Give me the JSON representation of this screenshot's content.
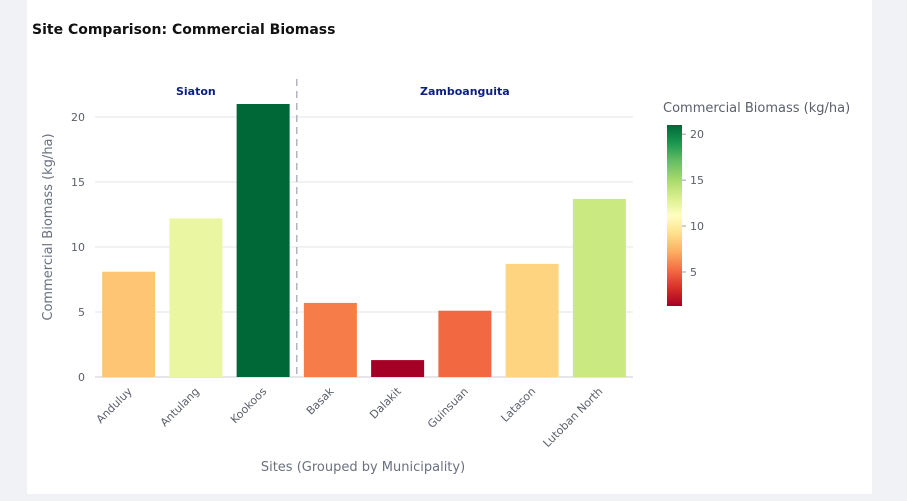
{
  "page": {
    "title": "Site Comparison: Commercial Biomass"
  },
  "chart_data": {
    "type": "bar",
    "title": "Site Comparison: Commercial Biomass",
    "xlabel": "Sites (Grouped by Municipality)",
    "ylabel": "Commercial Biomass (kg/ha)",
    "ylim": [
      0,
      22.3
    ],
    "yticks": [
      0,
      5,
      10,
      15,
      20
    ],
    "grid": true,
    "categories": [
      "Anduluy",
      "Antulang",
      "Kookoos",
      "Basak",
      "Dalakit",
      "Guinsuan",
      "Latason",
      "Lutoban North"
    ],
    "values": [
      8.1,
      12.2,
      21.0,
      5.7,
      1.3,
      5.1,
      8.7,
      13.7
    ],
    "groups": [
      {
        "name": "Siaton",
        "sites": [
          "Anduluy",
          "Antulang",
          "Kookoos"
        ]
      },
      {
        "name": "Zamboanguita",
        "sites": [
          "Basak",
          "Dalakit",
          "Guinsuan",
          "Latason",
          "Lutoban North"
        ]
      }
    ],
    "colorscale": {
      "title": "Commercial Biomass (kg/ha)",
      "min": 1.3,
      "max": 21.0,
      "ticks": [
        5,
        10,
        15,
        20
      ],
      "name": "RdYlGn",
      "colors": [
        "#a50026",
        "#d73027",
        "#f46d43",
        "#fdae61",
        "#fee08b",
        "#ffffbf",
        "#d9ef8b",
        "#a6d96a",
        "#66bd63",
        "#1a9850",
        "#006837"
      ]
    }
  }
}
